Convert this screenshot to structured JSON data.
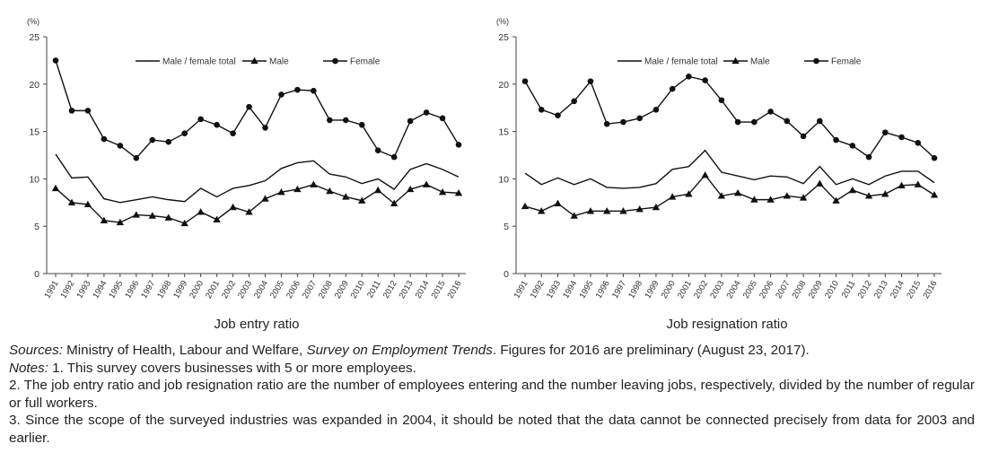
{
  "chart_data": [
    {
      "type": "line",
      "title": "Job entry ratio",
      "ylabel": "(%)",
      "ylim": [
        0,
        25
      ],
      "yticks": [
        0,
        5,
        10,
        15,
        20,
        25
      ],
      "x": [
        "1991",
        "1992",
        "1993",
        "1994",
        "1995",
        "1996",
        "1997",
        "1998",
        "1999",
        "2000",
        "2001",
        "2002",
        "2003",
        "2004",
        "2005",
        "2006",
        "2007",
        "2008",
        "2009",
        "2010",
        "2011",
        "2012",
        "2013",
        "2014",
        "2015",
        "2016"
      ],
      "legend_position": "top",
      "grid": false,
      "series": [
        {
          "name": "Male / female total",
          "marker": "none",
          "values": [
            12.6,
            10.1,
            10.2,
            7.9,
            7.5,
            7.8,
            8.1,
            7.8,
            7.6,
            9.0,
            8.1,
            9.0,
            9.3,
            9.8,
            11.1,
            11.7,
            11.9,
            10.5,
            10.2,
            9.5,
            10.0,
            8.9,
            11.0,
            11.6,
            11.0,
            10.2
          ]
        },
        {
          "name": "Male",
          "marker": "triangle",
          "values": [
            9.0,
            7.5,
            7.3,
            5.6,
            5.4,
            6.2,
            6.1,
            5.9,
            5.3,
            6.5,
            5.7,
            7.0,
            6.5,
            7.9,
            8.6,
            8.9,
            9.4,
            8.7,
            8.1,
            7.7,
            8.8,
            7.4,
            8.9,
            9.4,
            8.6,
            8.5
          ]
        },
        {
          "name": "Female",
          "marker": "circle",
          "values": [
            22.5,
            17.2,
            17.2,
            14.2,
            13.5,
            12.2,
            14.1,
            13.9,
            14.8,
            16.3,
            15.7,
            14.8,
            17.6,
            15.4,
            18.9,
            19.4,
            19.3,
            16.2,
            16.2,
            15.7,
            13.0,
            12.3,
            16.1,
            17.0,
            16.4,
            13.6
          ]
        }
      ]
    },
    {
      "type": "line",
      "title": "Job resignation ratio",
      "ylabel": "(%)",
      "ylim": [
        0,
        25
      ],
      "yticks": [
        0,
        5,
        10,
        15,
        20,
        25
      ],
      "x": [
        "1991",
        "1992",
        "1993",
        "1994",
        "1995",
        "1996",
        "1997",
        "1998",
        "1999",
        "2000",
        "2001",
        "2002",
        "2003",
        "2004",
        "2005",
        "2006",
        "2007",
        "2008",
        "2009",
        "2010",
        "2011",
        "2012",
        "2013",
        "2014",
        "2015",
        "2016"
      ],
      "legend_position": "top",
      "grid": false,
      "series": [
        {
          "name": "Male / female total",
          "marker": "none",
          "values": [
            10.6,
            9.4,
            10.1,
            9.4,
            10.0,
            9.1,
            9.0,
            9.1,
            9.5,
            11.0,
            11.3,
            13.0,
            10.7,
            10.3,
            9.9,
            10.3,
            10.2,
            9.5,
            11.3,
            9.4,
            10.0,
            9.4,
            10.3,
            10.8,
            10.8,
            9.6
          ]
        },
        {
          "name": "Male",
          "marker": "triangle",
          "values": [
            7.1,
            6.6,
            7.4,
            6.1,
            6.6,
            6.6,
            6.6,
            6.8,
            7.0,
            8.1,
            8.4,
            10.4,
            8.2,
            8.5,
            7.8,
            7.8,
            8.2,
            8.0,
            9.5,
            7.7,
            8.8,
            8.2,
            8.4,
            9.3,
            9.4,
            8.3
          ]
        },
        {
          "name": "Female",
          "marker": "circle",
          "values": [
            20.3,
            17.3,
            16.7,
            18.2,
            20.3,
            15.8,
            16.0,
            16.4,
            17.3,
            19.5,
            20.8,
            20.4,
            18.3,
            16.0,
            16.0,
            17.1,
            16.1,
            14.5,
            16.1,
            14.1,
            13.5,
            12.3,
            14.9,
            14.4,
            13.8,
            12.2
          ]
        }
      ]
    }
  ],
  "notes": {
    "sources_label": "Sources:",
    "sources_text_1": " Ministry of Health, Labour and Welfare, ",
    "sources_survey": "Survey on Employment Trends",
    "sources_text_2": ". Figures for 2016 are preliminary (August 23, 2017).",
    "notes_label": "Notes:",
    "note_1": " 1. This survey covers businesses with 5 or more employees.",
    "note_2": "2. The job entry ratio and job resignation ratio are the number of employees entering and the number leaving jobs, respectively, divided by the number of regular or full workers.",
    "note_3": "3. Since the scope of the surveyed industries was expanded in 2004, it should be noted that the data cannot be connected precisely from data for 2003 and earlier."
  }
}
